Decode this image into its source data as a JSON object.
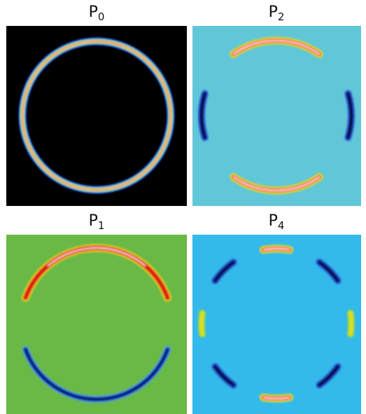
{
  "panels": [
    {
      "title": {
        "base": "P",
        "sub": "0"
      }
    },
    {
      "title": {
        "base": "P",
        "sub": "2"
      }
    },
    {
      "title": {
        "base": "P",
        "sub": "1"
      }
    },
    {
      "title": {
        "base": "P",
        "sub": "4"
      }
    }
  ]
}
